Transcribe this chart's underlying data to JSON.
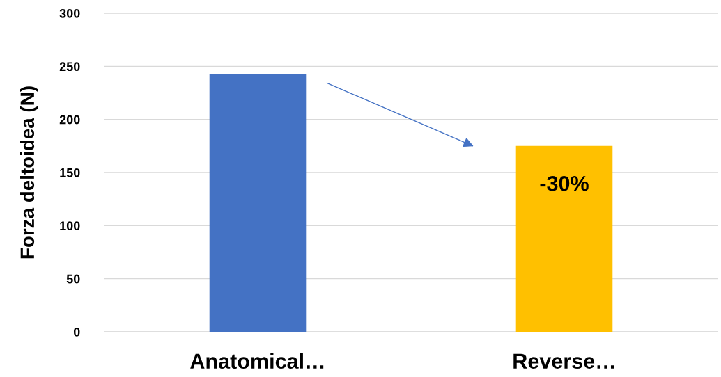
{
  "chart_data": {
    "type": "bar",
    "ylabel": "Forza deltoidea (N)",
    "categories": [
      "Anatomical…",
      "Reverse…"
    ],
    "values": [
      243,
      175
    ],
    "colors": [
      "#4472c4",
      "#ffc000"
    ],
    "ylim": [
      0,
      300
    ],
    "yticks": [
      0,
      50,
      100,
      150,
      200,
      250,
      300
    ],
    "grid": "y",
    "annotations": [
      "-30%"
    ]
  }
}
